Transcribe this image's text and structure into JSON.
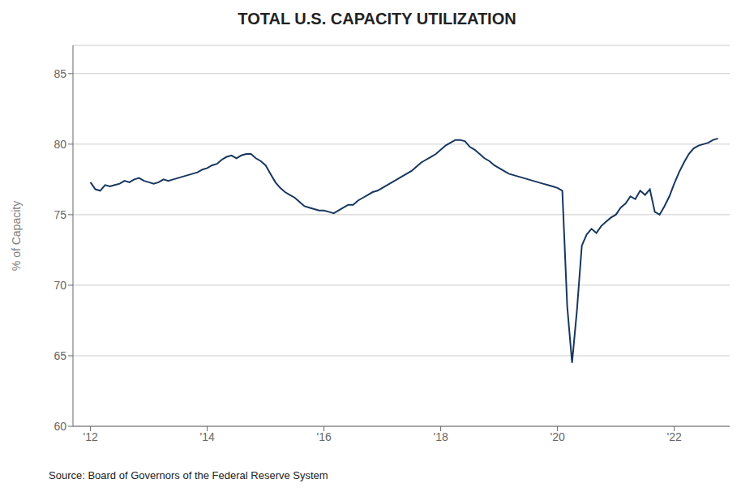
{
  "chart_data": {
    "type": "line",
    "title": "TOTAL U.S. CAPACITY UTILIZATION",
    "ylabel": "% of Capacity",
    "source": "Source: Board of Governors of the Federal Reserve System",
    "color": "#17375e",
    "grid": "y",
    "xlim": [
      2011.7,
      2022.95
    ],
    "xticks": [
      {
        "value": 2012,
        "label": "'12"
      },
      {
        "value": 2014,
        "label": "'14"
      },
      {
        "value": 2016,
        "label": "'16"
      },
      {
        "value": 2018,
        "label": "'18"
      },
      {
        "value": 2020,
        "label": "'20"
      },
      {
        "value": 2022,
        "label": "'22"
      }
    ],
    "ylim": [
      60,
      87
    ],
    "yticks": [
      60,
      65,
      70,
      75,
      80,
      85
    ],
    "x": [
      2012.0,
      2012.083,
      2012.167,
      2012.25,
      2012.333,
      2012.417,
      2012.5,
      2012.583,
      2012.667,
      2012.75,
      2012.833,
      2012.917,
      2013.0,
      2013.083,
      2013.167,
      2013.25,
      2013.333,
      2013.417,
      2013.5,
      2013.583,
      2013.667,
      2013.75,
      2013.833,
      2013.917,
      2014.0,
      2014.083,
      2014.167,
      2014.25,
      2014.333,
      2014.417,
      2014.5,
      2014.583,
      2014.667,
      2014.75,
      2014.833,
      2014.917,
      2015.0,
      2015.083,
      2015.167,
      2015.25,
      2015.333,
      2015.417,
      2015.5,
      2015.583,
      2015.667,
      2015.75,
      2015.833,
      2015.917,
      2016.0,
      2016.083,
      2016.167,
      2016.25,
      2016.333,
      2016.417,
      2016.5,
      2016.583,
      2016.667,
      2016.75,
      2016.833,
      2016.917,
      2017.0,
      2017.083,
      2017.167,
      2017.25,
      2017.333,
      2017.417,
      2017.5,
      2017.583,
      2017.667,
      2017.75,
      2017.833,
      2017.917,
      2018.0,
      2018.083,
      2018.167,
      2018.25,
      2018.333,
      2018.417,
      2018.5,
      2018.583,
      2018.667,
      2018.75,
      2018.833,
      2018.917,
      2019.0,
      2019.083,
      2019.167,
      2019.25,
      2019.333,
      2019.417,
      2019.5,
      2019.583,
      2019.667,
      2019.75,
      2019.833,
      2019.917,
      2020.0,
      2020.083,
      2020.167,
      2020.25,
      2020.333,
      2020.417,
      2020.5,
      2020.583,
      2020.667,
      2020.75,
      2020.833,
      2020.917,
      2021.0,
      2021.083,
      2021.167,
      2021.25,
      2021.333,
      2021.417,
      2021.5,
      2021.583,
      2021.667,
      2021.75,
      2021.833,
      2021.917,
      2022.0,
      2022.083,
      2022.167,
      2022.25,
      2022.333,
      2022.417,
      2022.5,
      2022.583,
      2022.667,
      2022.75
    ],
    "values": [
      77.3,
      76.8,
      76.7,
      77.1,
      77.0,
      77.1,
      77.2,
      77.4,
      77.3,
      77.5,
      77.6,
      77.4,
      77.3,
      77.2,
      77.3,
      77.5,
      77.4,
      77.5,
      77.6,
      77.7,
      77.8,
      77.9,
      78.0,
      78.2,
      78.3,
      78.5,
      78.6,
      78.9,
      79.1,
      79.2,
      79.0,
      79.2,
      79.3,
      79.3,
      79.0,
      78.8,
      78.5,
      77.9,
      77.3,
      76.9,
      76.6,
      76.4,
      76.2,
      75.9,
      75.6,
      75.5,
      75.4,
      75.3,
      75.3,
      75.2,
      75.1,
      75.3,
      75.5,
      75.7,
      75.7,
      76.0,
      76.2,
      76.4,
      76.6,
      76.7,
      76.9,
      77.1,
      77.3,
      77.5,
      77.7,
      77.9,
      78.1,
      78.4,
      78.7,
      78.9,
      79.1,
      79.3,
      79.6,
      79.9,
      80.1,
      80.3,
      80.3,
      80.2,
      79.8,
      79.6,
      79.3,
      79.0,
      78.8,
      78.5,
      78.3,
      78.1,
      77.9,
      77.8,
      77.7,
      77.6,
      77.5,
      77.4,
      77.3,
      77.2,
      77.1,
      77.0,
      76.9,
      76.7,
      68.5,
      64.5,
      68.2,
      72.8,
      73.6,
      74.0,
      73.7,
      74.2,
      74.5,
      74.8,
      75.0,
      75.5,
      75.8,
      76.3,
      76.1,
      76.7,
      76.4,
      76.8,
      75.2,
      75.0,
      75.6,
      76.3,
      77.2,
      78.0,
      78.7,
      79.3,
      79.7,
      79.9,
      80.0,
      80.1,
      80.3,
      80.4
    ]
  }
}
